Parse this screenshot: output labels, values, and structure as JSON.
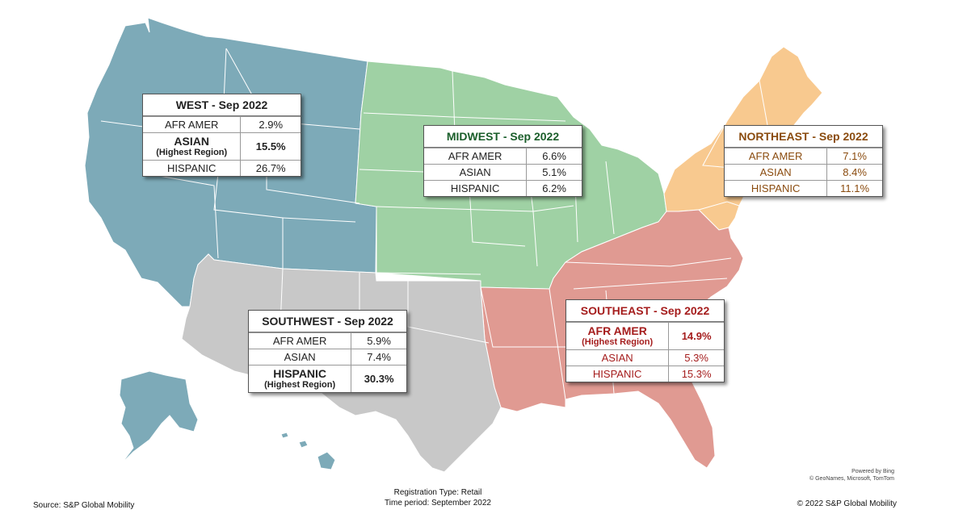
{
  "map": {
    "colors": {
      "west": "#7daab8",
      "midwest": "#9fd1a4",
      "northeast": "#f8c98f",
      "southeast": "#e09a92",
      "southwest": "#c8c8c8",
      "borders": "#ffffff"
    }
  },
  "regions": {
    "west": {
      "title": "WEST - Sep 2022",
      "rows": [
        {
          "label": "AFR AMER",
          "value": "2.9%"
        },
        {
          "label": "ASIAN",
          "sub": "(Highest Region)",
          "value": "15.5%"
        },
        {
          "label": "HISPANIC",
          "value": "26.7%"
        }
      ]
    },
    "midwest": {
      "title": "MIDWEST - Sep 2022",
      "rows": [
        {
          "label": "AFR AMER",
          "value": "6.6%"
        },
        {
          "label": "ASIAN",
          "value": "5.1%"
        },
        {
          "label": "HISPANIC",
          "value": "6.2%"
        }
      ]
    },
    "northeast": {
      "title": "NORTHEAST - Sep 2022",
      "rows": [
        {
          "label": "AFR AMER",
          "value": "7.1%"
        },
        {
          "label": "ASIAN",
          "value": "8.4%"
        },
        {
          "label": "HISPANIC",
          "value": "11.1%"
        }
      ]
    },
    "southwest": {
      "title": "SOUTHWEST - Sep 2022",
      "rows": [
        {
          "label": "AFR AMER",
          "value": "5.9%"
        },
        {
          "label": "ASIAN",
          "value": "7.4%"
        },
        {
          "label": "HISPANIC",
          "sub": "(Highest Region)",
          "value": "30.3%"
        }
      ]
    },
    "southeast": {
      "title": "SOUTHEAST - Sep 2022",
      "rows": [
        {
          "label": "AFR AMER",
          "sub": "(Highest Region)",
          "value": "14.9%"
        },
        {
          "label": "ASIAN",
          "value": "5.3%"
        },
        {
          "label": "HISPANIC",
          "value": "15.3%"
        }
      ]
    }
  },
  "attribution": {
    "powered_by": "Powered by Bing",
    "data_sources": "© GeoNames, Microsoft, TomTom"
  },
  "footer": {
    "source": "Source: S&P Global Mobility",
    "registration_type": "Registration Type: Retail",
    "time_period": "Time period: September 2022",
    "copyright": "© 2022 S&P Global Mobility"
  }
}
